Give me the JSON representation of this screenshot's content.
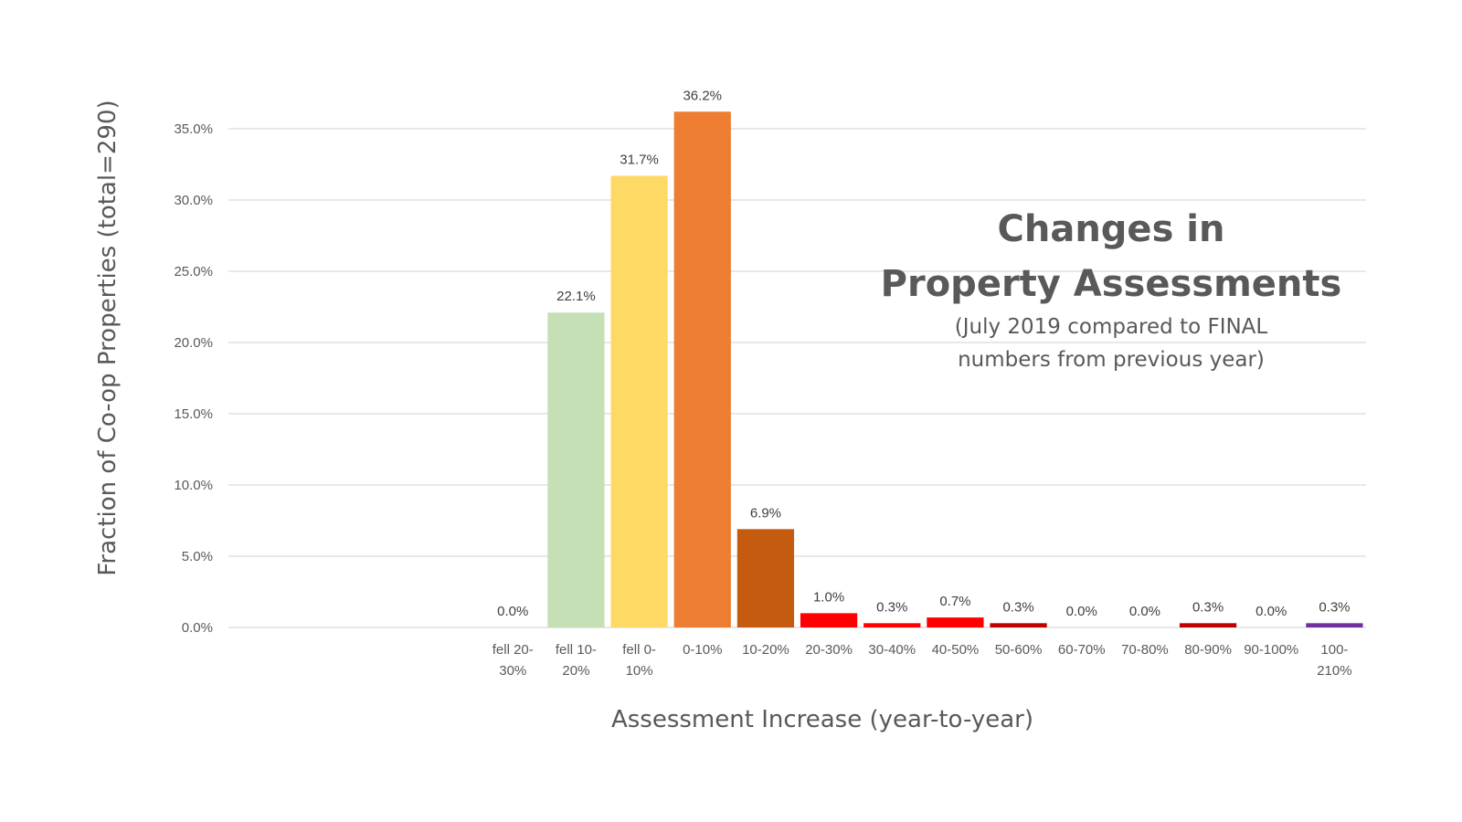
{
  "chart_data": {
    "type": "bar",
    "title_lines": [
      "Changes in",
      "Property Assessments"
    ],
    "subtitle_lines": [
      "(July 2019 compared to FINAL",
      "numbers from previous year)"
    ],
    "xlabel": "Assessment Increase (year-to-year)",
    "ylabel": "Fraction of Co-op Properties (total=290)",
    "ylim": [
      0,
      35
    ],
    "yticks": [
      {
        "value": 0,
        "label": "0.0%"
      },
      {
        "value": 5,
        "label": "5.0%"
      },
      {
        "value": 10,
        "label": "10.0%"
      },
      {
        "value": 15,
        "label": "15.0%"
      },
      {
        "value": 20,
        "label": "20.0%"
      },
      {
        "value": 25,
        "label": "25.0%"
      },
      {
        "value": 30,
        "label": "30.0%"
      },
      {
        "value": 35,
        "label": "35.0%"
      }
    ],
    "grid": true,
    "categories": [
      {
        "label": [
          "",
          ""
        ],
        "value": null,
        "value_label": "",
        "color": ""
      },
      {
        "label": [
          "",
          ""
        ],
        "value": null,
        "value_label": "",
        "color": ""
      },
      {
        "label": [
          "",
          ""
        ],
        "value": null,
        "value_label": "",
        "color": ""
      },
      {
        "label": [
          "",
          ""
        ],
        "value": null,
        "value_label": "",
        "color": ""
      },
      {
        "label": [
          "fell 20-",
          "30%"
        ],
        "value": 0.0,
        "value_label": "0.0%",
        "color": "#c00000"
      },
      {
        "label": [
          "fell 10-",
          "20%"
        ],
        "value": 22.1,
        "value_label": "22.1%",
        "color": "#c5e0b4"
      },
      {
        "label": [
          "fell 0-",
          "10%"
        ],
        "value": 31.7,
        "value_label": "31.7%",
        "color": "#ffd966"
      },
      {
        "label": [
          "0-10%",
          ""
        ],
        "value": 36.2,
        "value_label": "36.2%",
        "color": "#ed7d31"
      },
      {
        "label": [
          "10-20%",
          ""
        ],
        "value": 6.9,
        "value_label": "6.9%",
        "color": "#c55a11"
      },
      {
        "label": [
          "20-30%",
          ""
        ],
        "value": 1.0,
        "value_label": "1.0%",
        "color": "#ff0000"
      },
      {
        "label": [
          "30-40%",
          ""
        ],
        "value": 0.3,
        "value_label": "0.3%",
        "color": "#ff0000"
      },
      {
        "label": [
          "40-50%",
          ""
        ],
        "value": 0.7,
        "value_label": "0.7%",
        "color": "#ff0000"
      },
      {
        "label": [
          "50-60%",
          ""
        ],
        "value": 0.3,
        "value_label": "0.3%",
        "color": "#c00000"
      },
      {
        "label": [
          "60-70%",
          ""
        ],
        "value": 0.0,
        "value_label": "0.0%",
        "color": "#c00000"
      },
      {
        "label": [
          "70-80%",
          ""
        ],
        "value": 0.0,
        "value_label": "0.0%",
        "color": "#c00000"
      },
      {
        "label": [
          "80-90%",
          ""
        ],
        "value": 0.3,
        "value_label": "0.3%",
        "color": "#c00000"
      },
      {
        "label": [
          "90-100%",
          ""
        ],
        "value": 0.0,
        "value_label": "0.0%",
        "color": "#c00000"
      },
      {
        "label": [
          "100-",
          "210%"
        ],
        "value": 0.3,
        "value_label": "0.3%",
        "color": "#7030a0"
      }
    ],
    "colors": {
      "grid": "#d9d9d9",
      "text": "#595959"
    }
  }
}
